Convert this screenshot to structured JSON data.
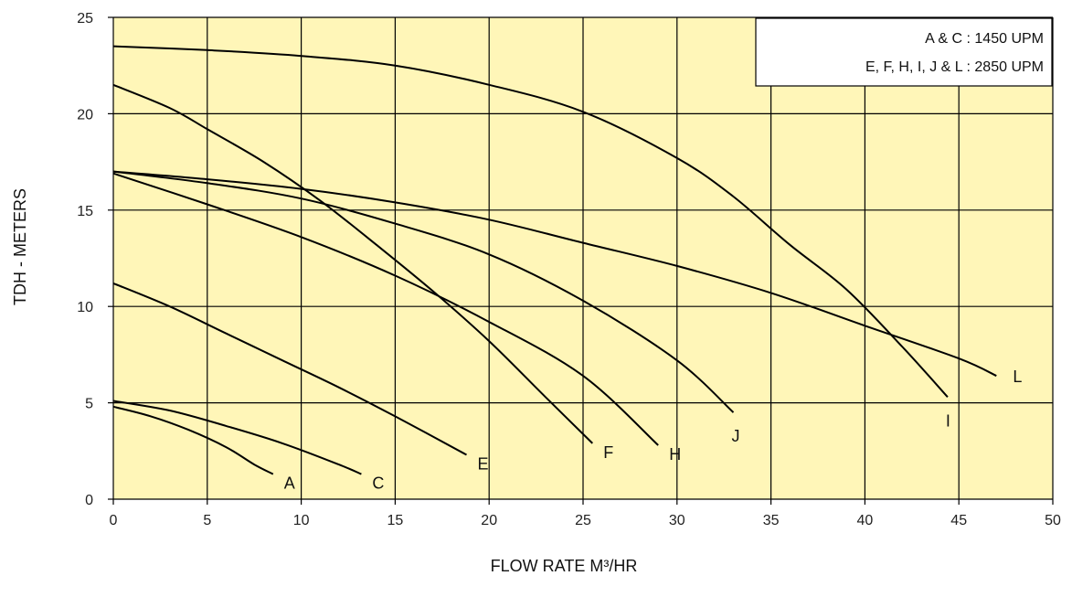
{
  "chart_data": {
    "type": "line",
    "title": "",
    "xlabel": "FLOW RATE M³/HR",
    "ylabel": "TDH - METERS",
    "xlim": [
      0,
      50
    ],
    "ylim": [
      0,
      25
    ],
    "x_ticks": [
      0,
      5,
      10,
      15,
      20,
      25,
      30,
      35,
      40,
      45,
      50
    ],
    "y_ticks": [
      0,
      5,
      10,
      15,
      20,
      25
    ],
    "grid": true,
    "plot_background": "#fff6b8",
    "line_color": "#000000",
    "legend": {
      "placement": "top-right",
      "lines": [
        "A & C : 1450 UPM",
        "E, F, H, I, J & L : 2850 UPM"
      ]
    },
    "series": [
      {
        "name": "A",
        "x": [
          0,
          2,
          4,
          6,
          7.5,
          8.5
        ],
        "y": [
          4.8,
          4.3,
          3.6,
          2.7,
          1.8,
          1.3
        ]
      },
      {
        "name": "C",
        "x": [
          0,
          3,
          6,
          9,
          12,
          13.2
        ],
        "y": [
          5.1,
          4.6,
          3.8,
          2.9,
          1.8,
          1.3
        ]
      },
      {
        "name": "E",
        "x": [
          0,
          3,
          6,
          9,
          12,
          15,
          18.8
        ],
        "y": [
          11.2,
          10.0,
          8.6,
          7.2,
          5.8,
          4.3,
          2.3
        ]
      },
      {
        "name": "F",
        "x": [
          0,
          3,
          5,
          8,
          11,
          14,
          17,
          20,
          23,
          25.5
        ],
        "y": [
          21.5,
          20.3,
          19.2,
          17.5,
          15.5,
          13.2,
          10.8,
          8.2,
          5.3,
          2.9
        ]
      },
      {
        "name": "H",
        "x": [
          0,
          5,
          10,
          15,
          20,
          25,
          29
        ],
        "y": [
          16.9,
          15.3,
          13.6,
          11.6,
          9.2,
          6.4,
          2.8
        ]
      },
      {
        "name": "J",
        "x": [
          0,
          5,
          10,
          15,
          20,
          25,
          30,
          33
        ],
        "y": [
          17.0,
          16.4,
          15.6,
          14.3,
          12.7,
          10.3,
          7.2,
          4.5
        ]
      },
      {
        "name": "L",
        "x": [
          0,
          5,
          10,
          15,
          20,
          25,
          30,
          35,
          40,
          45,
          47
        ],
        "y": [
          17.0,
          16.6,
          16.1,
          15.4,
          14.5,
          13.3,
          12.1,
          10.7,
          9.0,
          7.3,
          6.4
        ]
      },
      {
        "name": "I",
        "x": [
          0,
          5,
          10,
          15,
          20,
          25,
          30,
          33,
          36,
          39,
          42,
          44.4
        ],
        "y": [
          23.5,
          23.3,
          23.0,
          22.5,
          21.5,
          20.1,
          17.7,
          15.7,
          13.2,
          10.9,
          7.9,
          5.3
        ]
      }
    ]
  }
}
